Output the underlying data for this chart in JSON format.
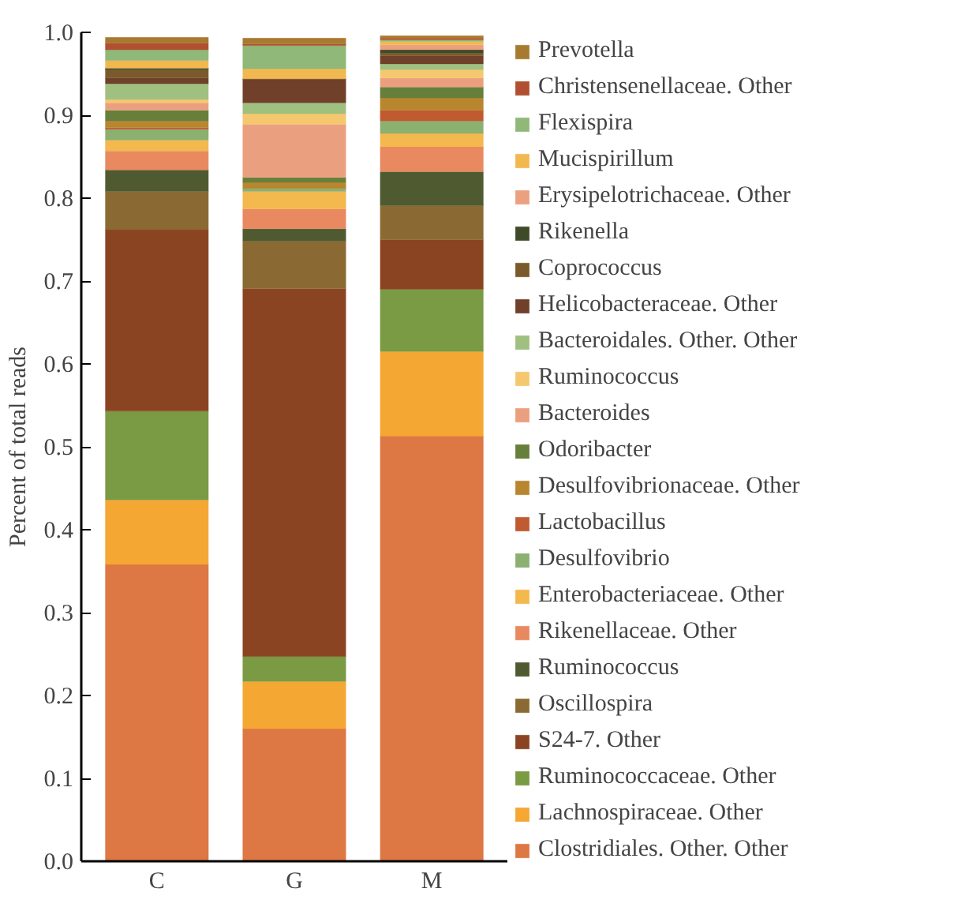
{
  "chart_data": {
    "type": "bar",
    "stacked": true,
    "ylabel": "Percent of total reads",
    "categories": [
      "C",
      "G",
      "M"
    ],
    "ylim": [
      0,
      1.0
    ],
    "yticks": [
      {
        "value": 0,
        "label": "0.0"
      },
      {
        "value": 0.1,
        "label": "0.1"
      },
      {
        "value": 0.2,
        "label": "0.2"
      },
      {
        "value": 0.3,
        "label": "0.3"
      },
      {
        "value": 0.4,
        "label": "0.4"
      },
      {
        "value": 0.5,
        "label": "0.5"
      },
      {
        "value": 0.6,
        "label": "0.6"
      },
      {
        "value": 0.7,
        "label": "0.7"
      },
      {
        "value": 0.8,
        "label": "0.8"
      },
      {
        "value": 0.9,
        "label": "0.9"
      },
      {
        "value": 1.0,
        "label": "1.0"
      }
    ],
    "grid": false,
    "legend": "right",
    "series": [
      {
        "name": "Clostridiales. Other. Other",
        "color": "#dd7744",
        "values": [
          0.358,
          0.16,
          0.513
        ]
      },
      {
        "name": "Lachnospiraceae. Other",
        "color": "#f5a733",
        "values": [
          0.078,
          0.057,
          0.102
        ]
      },
      {
        "name": "Ruminococcaceae. Other",
        "color": "#7a9a44",
        "values": [
          0.107,
          0.03,
          0.075
        ]
      },
      {
        "name": "S24-7. Other",
        "color": "#8b4422",
        "values": [
          0.219,
          0.444,
          0.06
        ]
      },
      {
        "name": "Oscillospira",
        "color": "#8a6a32",
        "values": [
          0.046,
          0.057,
          0.041
        ]
      },
      {
        "name": "Ruminococcus",
        "color": "#4f5a30",
        "values": [
          0.026,
          0.015,
          0.041
        ]
      },
      {
        "name": "Rikenellaceae. Other",
        "color": "#e8895f",
        "values": [
          0.023,
          0.024,
          0.03
        ]
      },
      {
        "name": "Enterobacteriaceae. Other",
        "color": "#f3b84e",
        "values": [
          0.013,
          0.021,
          0.016
        ]
      },
      {
        "name": "Desulfovibrio",
        "color": "#8cb070",
        "values": [
          0.013,
          0.004,
          0.015
        ]
      },
      {
        "name": "Lactobacillus",
        "color": "#c05a30",
        "values": [
          0.002,
          0,
          0.013
        ]
      },
      {
        "name": "Desulfovibrionaceae. Other",
        "color": "#b8862f",
        "values": [
          0.008,
          0.007,
          0.015
        ]
      },
      {
        "name": "Odoribacter",
        "color": "#667f3a",
        "values": [
          0.013,
          0.006,
          0.013
        ]
      },
      {
        "name": "Bacteroides",
        "color": "#eaa07e",
        "values": [
          0.009,
          0.064,
          0.011
        ]
      },
      {
        "name": "Ruminococcus",
        "color": "#f5c870",
        "values": [
          0.004,
          0.013,
          0.01
        ]
      },
      {
        "name": "Bacteroidales. Other. Other",
        "color": "#a0c080",
        "values": [
          0.019,
          0.013,
          0.007
        ]
      },
      {
        "name": "Helicobacteraceae. Other",
        "color": "#70402a",
        "values": [
          0.007,
          0.029,
          0.01
        ]
      },
      {
        "name": "Coprococcus",
        "color": "#7a5a2a",
        "values": [
          0.01,
          0,
          0.003
        ]
      },
      {
        "name": "Rikenella",
        "color": "#3f4a28",
        "values": [
          0.002,
          0,
          0.004
        ]
      },
      {
        "name": "Erysipelotrichaceae. Other",
        "color": "#eba080",
        "values": [
          0,
          0,
          0.006
        ]
      },
      {
        "name": "Mucispirillum",
        "color": "#f2b850",
        "values": [
          0.009,
          0.012,
          0.004
        ]
      },
      {
        "name": "Flexispira",
        "color": "#90b878",
        "values": [
          0.013,
          0.028,
          0.002
        ]
      },
      {
        "name": "Christensenellaceae. Other",
        "color": "#b05030",
        "values": [
          0.008,
          0.002,
          0.002
        ]
      },
      {
        "name": "Prevotella",
        "color": "#a87a30",
        "values": [
          0.007,
          0.007,
          0.003
        ]
      }
    ]
  }
}
